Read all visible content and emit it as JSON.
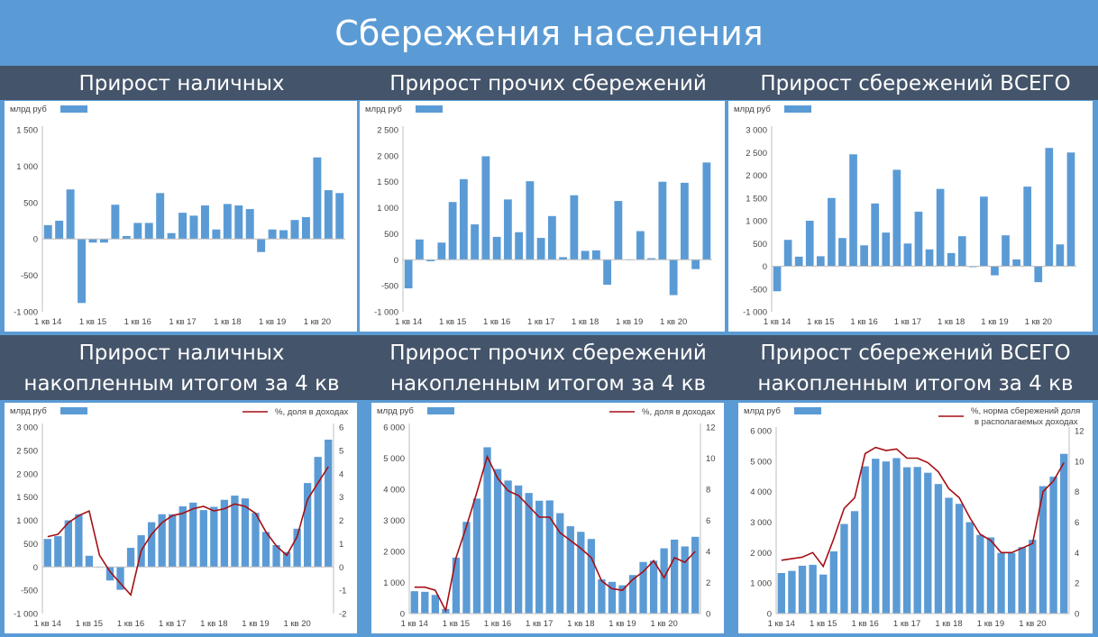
{
  "page_title": "Сбережения населения",
  "colors": {
    "bar": "#5b9bd5",
    "line": "#a50f15",
    "band": "#44546a",
    "background": "#5b9bd5"
  },
  "chart_data": [
    {
      "type": "bar",
      "heading": "Прирост наличных",
      "ylabel": "млрд руб",
      "ylim": [
        -1000,
        1500
      ],
      "yticks": [
        -1000,
        -500,
        0,
        500,
        1000,
        1500
      ],
      "ytick_labels": [
        "-1 000",
        "-500",
        "0",
        "500",
        "1 000",
        "1 500"
      ],
      "xtick_labels": [
        "1 кв 14",
        "1 кв 15",
        "1 кв 16",
        "1 кв 17",
        "1 кв 18",
        "1 кв 19",
        "1 кв 20"
      ],
      "series": [
        {
          "values": [
            190,
            250,
            680,
            -880,
            -50,
            -50,
            470,
            40,
            220,
            220,
            630,
            80,
            360,
            320,
            460,
            130,
            480,
            460,
            410,
            -180,
            130,
            120,
            260,
            300,
            1120,
            670,
            630
          ]
        }
      ]
    },
    {
      "type": "bar",
      "heading": "Прирост прочих сбережений",
      "ylabel": "млрд руб",
      "ylim": [
        -1000,
        2500
      ],
      "yticks": [
        -1000,
        -500,
        0,
        500,
        1000,
        1500,
        2000,
        2500
      ],
      "ytick_labels": [
        "-1 000",
        "-500",
        "0",
        "500",
        "1 000",
        "1 500",
        "2 000",
        "2 500"
      ],
      "xtick_labels": [
        "1 кв 14",
        "1 кв 15",
        "1 кв 16",
        "1 кв 17",
        "1 кв 18",
        "1 кв 19",
        "1 кв 20"
      ],
      "series": [
        {
          "values": [
            -550,
            390,
            -30,
            330,
            1110,
            1550,
            680,
            1990,
            440,
            1160,
            530,
            1510,
            420,
            840,
            50,
            1240,
            170,
            180,
            -480,
            1130,
            0,
            550,
            30,
            1500,
            -680,
            1480,
            -180,
            1870
          ]
        }
      ]
    },
    {
      "type": "bar",
      "heading": "Прирост сбережений ВСЕГО",
      "ylabel": "млрд руб",
      "ylim": [
        -1000,
        3000
      ],
      "yticks": [
        -1000,
        -500,
        0,
        500,
        1000,
        1500,
        2000,
        2500,
        3000
      ],
      "ytick_labels": [
        "-1 000",
        "-500",
        "0",
        "500",
        "1 000",
        "1 500",
        "2 000",
        "2 500",
        "3 000"
      ],
      "xtick_labels": [
        "1 кв 14",
        "1 кв 15",
        "1 кв 16",
        "1 кв 17",
        "1 кв 18",
        "1 кв 19",
        "1 кв 20"
      ],
      "series": [
        {
          "values": [
            -550,
            580,
            210,
            1000,
            220,
            1500,
            620,
            2460,
            460,
            1380,
            740,
            2120,
            500,
            1200,
            370,
            1700,
            290,
            660,
            -20,
            1530,
            -200,
            680,
            150,
            1750,
            -350,
            2600,
            480,
            2500
          ]
        }
      ]
    },
    {
      "type": "bar",
      "heading_lines": [
        "Прирост наличных",
        "накопленным итогом за 4 кв"
      ],
      "ylabel": "млрд руб",
      "legend_line": "%, доля в доходах",
      "ylim": [
        -1000,
        3000
      ],
      "yticks": [
        -1000,
        -500,
        0,
        500,
        1000,
        1500,
        2000,
        2500,
        3000
      ],
      "ytick_labels": [
        "-1 000",
        "-500",
        "0",
        "500",
        "1 000",
        "1 500",
        "2 000",
        "2 500",
        "3 000"
      ],
      "y2lim": [
        -2,
        6
      ],
      "y2ticks": [
        -2,
        -1,
        0,
        1,
        2,
        3,
        4,
        5,
        6
      ],
      "xtick_labels": [
        "1 кв 14",
        "1 кв 15",
        "1 кв 16",
        "1 кв 17",
        "1 кв 18",
        "1 кв 19",
        "1 кв 20"
      ],
      "series": [
        {
          "values": [
            600,
            660,
            1000,
            1130,
            240,
            0,
            -290,
            -490,
            410,
            680,
            960,
            1130,
            1130,
            1300,
            1380,
            1220,
            1290,
            1440,
            1530,
            1470,
            1160,
            750,
            470,
            320,
            820,
            1800,
            2360,
            2730
          ]
        },
        {
          "values": [
            1.3,
            1.4,
            1.9,
            2.2,
            2.4,
            0.5,
            -0.2,
            -0.7,
            -1.2,
            0.7,
            1.4,
            1.9,
            2.2,
            2.3,
            2.5,
            2.6,
            2.4,
            2.5,
            2.7,
            2.6,
            2.3,
            1.5,
            0.9,
            0.5,
            1.3,
            2.9,
            3.6,
            4.3
          ]
        }
      ]
    },
    {
      "type": "bar",
      "heading_lines": [
        "Прирост прочих сбережений",
        "накопленным итогом за 4 кв"
      ],
      "ylabel": "млрд руб",
      "legend_line": "%, доля в доходах",
      "ylim": [
        0,
        6000
      ],
      "yticks": [
        0,
        1000,
        2000,
        3000,
        4000,
        5000,
        6000
      ],
      "ytick_labels": [
        "0",
        "1 000",
        "2 000",
        "3 000",
        "4 000",
        "5 000",
        "6 000"
      ],
      "y2lim": [
        0,
        12
      ],
      "y2ticks": [
        0,
        2,
        4,
        6,
        8,
        10,
        12
      ],
      "xtick_labels": [
        "1 кв 14",
        "1 кв 15",
        "1 кв 16",
        "1 кв 17",
        "1 кв 18",
        "1 кв 19",
        "1 кв 20"
      ],
      "series": [
        {
          "values": [
            720,
            700,
            600,
            150,
            1800,
            2950,
            3700,
            5350,
            4650,
            4280,
            4120,
            3880,
            3630,
            3640,
            3230,
            2810,
            2630,
            2400,
            1100,
            1020,
            910,
            1240,
            1660,
            1700,
            2100,
            2380,
            2160,
            2470
          ]
        },
        {
          "values": [
            1.7,
            1.7,
            1.5,
            0.2,
            3.6,
            5.6,
            7.8,
            10.1,
            8.7,
            7.9,
            7.6,
            6.9,
            6.2,
            6.2,
            5.2,
            4.7,
            4.2,
            3.6,
            2.1,
            1.6,
            1.5,
            2.2,
            2.7,
            3.4,
            2.3,
            3.6,
            3.3,
            4.0
          ]
        }
      ]
    },
    {
      "type": "bar",
      "heading_lines": [
        "Прирост сбережений ВСЕГО",
        "накопленным итогом за 4 кв"
      ],
      "ylabel": "млрд руб",
      "legend_line": "%, норма сбережений доля в располагаемых доходах",
      "ylim": [
        0,
        6000
      ],
      "yticks": [
        0,
        1000,
        2000,
        3000,
        4000,
        5000,
        6000
      ],
      "ytick_labels": [
        "0",
        "1 000",
        "2 000",
        "3 000",
        "4 000",
        "5 000",
        "6 000"
      ],
      "y2lim": [
        0,
        12
      ],
      "y2ticks": [
        0,
        2,
        4,
        6,
        8,
        10,
        12
      ],
      "xtick_labels": [
        "1 кв 14",
        "1 кв 15",
        "1 кв 16",
        "1 кв 17",
        "1 кв 18",
        "1 кв 19",
        "1 кв 20"
      ],
      "series": [
        {
          "values": [
            1330,
            1400,
            1570,
            1600,
            1280,
            2040,
            2940,
            3360,
            4830,
            5080,
            4990,
            5100,
            4800,
            4810,
            4620,
            4250,
            3800,
            3600,
            3000,
            2580,
            2500,
            1990,
            1990,
            2180,
            2420,
            4180,
            4490,
            5240
          ]
        },
        {
          "values": [
            3.5,
            3.6,
            3.7,
            4.0,
            3.1,
            4.9,
            6.9,
            7.6,
            10.5,
            10.9,
            10.7,
            10.8,
            10.2,
            10.2,
            9.9,
            9.3,
            8.2,
            7.6,
            6.3,
            5.2,
            4.8,
            4.0,
            4.0,
            4.3,
            4.6,
            8.0,
            8.7,
            9.9
          ]
        }
      ]
    }
  ]
}
